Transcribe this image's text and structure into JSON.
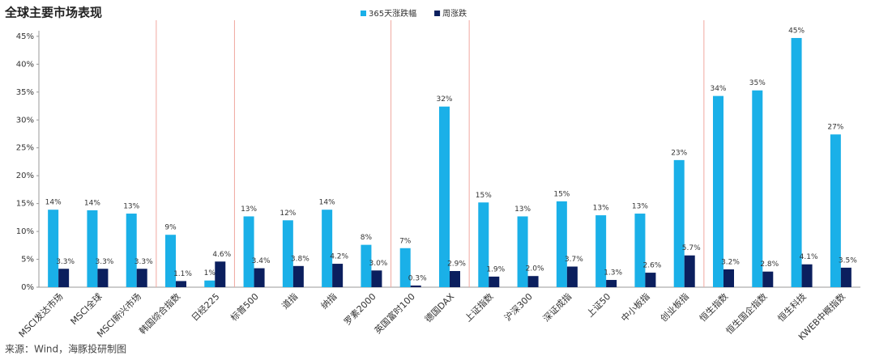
{
  "chart_data": {
    "type": "bar",
    "title": "全球主要市场表现",
    "source": "来源：Wind，海豚投研制图",
    "categories": [
      "MSCI发达市场",
      "MSCI全球",
      "MSCI新兴市场",
      "韩国综合指数",
      "日经225",
      "标普500",
      "道指",
      "纳指",
      "罗素2000",
      "英国富时100",
      "德国DAX",
      "上证指数",
      "沪深300",
      "深证成指",
      "上证50",
      "中小板指",
      "创业板指",
      "恒生指数",
      "恒生国企指数",
      "恒生科技",
      "KWEB中概指数"
    ],
    "series": [
      {
        "name": "365天涨跌幅",
        "color": "#1ab0e8",
        "values": [
          13.9,
          13.8,
          13.2,
          9.4,
          1.2,
          12.7,
          12.0,
          13.9,
          7.6,
          7.0,
          32.4,
          15.2,
          12.7,
          15.4,
          12.9,
          13.2,
          22.8,
          34.3,
          35.3,
          44.7,
          27.4
        ],
        "value_labels": [
          "14%",
          "14%",
          "13%",
          "9%",
          "1%",
          "13%",
          "12%",
          "14%",
          "8%",
          "7%",
          "32%",
          "15%",
          "13%",
          "15%",
          "13%",
          "13%",
          "23%",
          "34%",
          "35%",
          "45%",
          "27%"
        ]
      },
      {
        "name": "周涨跌",
        "color": "#0b1f5e",
        "values": [
          3.3,
          3.3,
          3.3,
          1.1,
          4.6,
          3.4,
          3.8,
          4.2,
          3.0,
          0.3,
          2.9,
          1.9,
          2.0,
          3.7,
          1.3,
          2.6,
          5.7,
          3.2,
          2.8,
          4.1,
          3.5
        ],
        "value_labels": [
          "3.3%",
          "3.3%",
          "3.3%",
          "1.1%",
          "4.6%",
          "3.4%",
          "3.8%",
          "4.2%",
          "3.0%",
          "0.3%",
          "2.9%",
          "1.9%",
          "2.0%",
          "3.7%",
          "1.3%",
          "2.6%",
          "5.7%",
          "3.2%",
          "2.8%",
          "4.1%",
          "3.5%"
        ]
      }
    ],
    "ylim": [
      0,
      46
    ],
    "yticks": [
      {
        "value": 0,
        "label": "0%"
      },
      {
        "value": 5,
        "label": "5%"
      },
      {
        "value": 10,
        "label": "10%"
      },
      {
        "value": 15,
        "label": "15%"
      },
      {
        "value": 20,
        "label": "20%"
      },
      {
        "value": 25,
        "label": "25%"
      },
      {
        "value": 30,
        "label": "30%"
      },
      {
        "value": 35,
        "label": "35%"
      },
      {
        "value": 40,
        "label": "40%"
      },
      {
        "value": 45,
        "label": "45%"
      }
    ],
    "grid": false
  }
}
